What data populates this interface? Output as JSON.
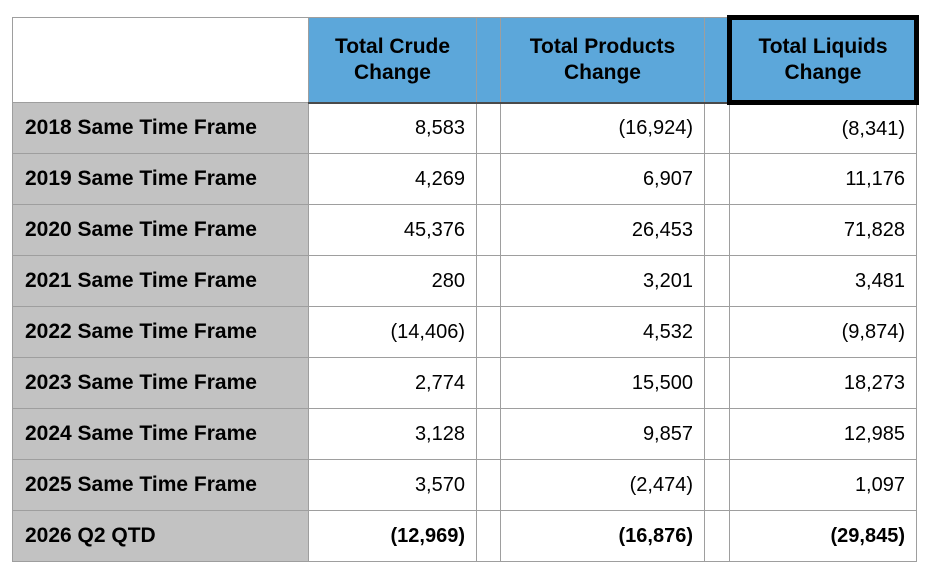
{
  "colors": {
    "header_bg": "#5CA7DA",
    "label_bg": "#C2C2C2",
    "grid_border": "#9E9E9E",
    "header_bottom_border": "#4A4A4A",
    "highlight_border": "#000000",
    "text": "#000000",
    "page_bg": "#FFFFFF"
  },
  "chart_data": {
    "type": "table",
    "header": {
      "row_label": "",
      "crude": "Total Crude Change",
      "products": "Total Products Change",
      "liquids": "Total Liquids Change"
    },
    "highlighted_column": "Total Liquids Change",
    "negative_format": "parentheses",
    "rows": [
      {
        "label": "2018 Same Time Frame",
        "crude": "8,583",
        "products": "(16,924)",
        "liquids": "(8,341)"
      },
      {
        "label": "2019 Same Time Frame",
        "crude": "4,269",
        "products": "6,907",
        "liquids": "11,176"
      },
      {
        "label": "2020 Same Time Frame",
        "crude": "45,376",
        "products": "26,453",
        "liquids": "71,828"
      },
      {
        "label": "2021 Same Time Frame",
        "crude": "280",
        "products": "3,201",
        "liquids": "3,481"
      },
      {
        "label": "2022 Same Time Frame",
        "crude": "(14,406)",
        "products": "4,532",
        "liquids": "(9,874)"
      },
      {
        "label": "2023 Same Time Frame",
        "crude": "2,774",
        "products": "15,500",
        "liquids": "18,273"
      },
      {
        "label": "2024 Same Time Frame",
        "crude": "3,128",
        "products": "9,857",
        "liquids": "12,985"
      },
      {
        "label": "2025 Same Time Frame",
        "crude": "3,570",
        "products": "(2,474)",
        "liquids": "1,097"
      },
      {
        "label": "2026 Q2 QTD",
        "crude": "(12,969)",
        "products": "(16,876)",
        "liquids": "(29,845)"
      }
    ],
    "values": {
      "categories": [
        "2018 Same Time Frame",
        "2019 Same Time Frame",
        "2020 Same Time Frame",
        "2021 Same Time Frame",
        "2022 Same Time Frame",
        "2023 Same Time Frame",
        "2024 Same Time Frame",
        "2025 Same Time Frame",
        "2026 Q2 QTD"
      ],
      "series": [
        {
          "name": "Total Crude Change",
          "values": [
            8583,
            4269,
            45376,
            280,
            -14406,
            2774,
            3128,
            3570,
            -12969
          ]
        },
        {
          "name": "Total Products Change",
          "values": [
            -16924,
            6907,
            26453,
            3201,
            4532,
            15500,
            9857,
            -2474,
            -16876
          ]
        },
        {
          "name": "Total Liquids Change",
          "values": [
            -8341,
            11176,
            71828,
            3481,
            -9874,
            18273,
            12985,
            1097,
            -29845
          ]
        }
      ]
    }
  }
}
